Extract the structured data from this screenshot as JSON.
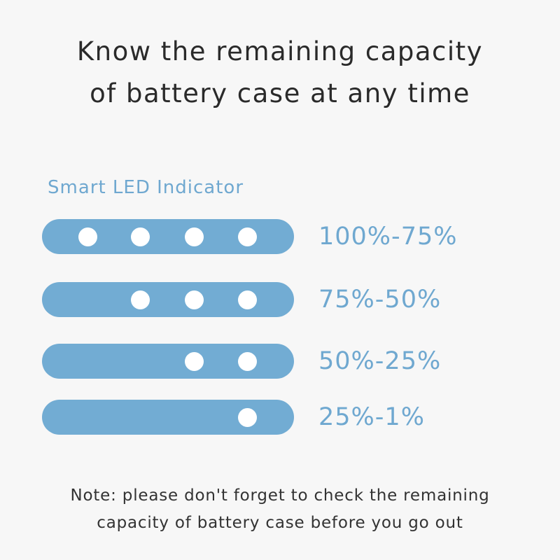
{
  "headline": {
    "line1": "Know the remaining capacity",
    "line2": "of battery case at any time"
  },
  "indicator": {
    "title": "Smart LED Indicator",
    "led_color": "#72acd3",
    "dot_color": "#ffffff",
    "levels": [
      {
        "range": "100%-75%",
        "lit_leds": 4
      },
      {
        "range": "75%-50%",
        "lit_leds": 3
      },
      {
        "range": "50%-25%",
        "lit_leds": 2
      },
      {
        "range": "25%-1%",
        "lit_leds": 1
      }
    ]
  },
  "note": {
    "line1": "Note: please don't forget to check the remaining",
    "line2": "capacity of battery case before you go out"
  }
}
